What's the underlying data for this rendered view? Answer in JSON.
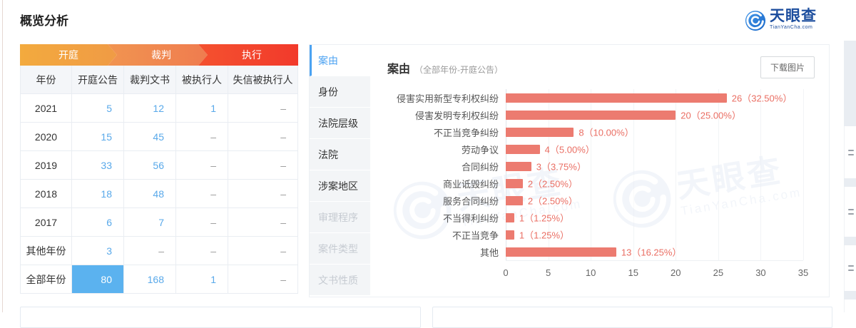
{
  "page": {
    "title": "概览分析"
  },
  "logo": {
    "brand": "天眼查",
    "domain": "TianYanCha.com"
  },
  "flow_tabs": [
    {
      "label": "开庭"
    },
    {
      "label": "裁判"
    },
    {
      "label": "执行"
    }
  ],
  "table": {
    "columns": [
      "年份",
      "开庭公告",
      "裁判文书",
      "被执行人",
      "失信被执行人"
    ],
    "rows": [
      {
        "label": "2021",
        "cells": [
          "5",
          "12",
          "1",
          "–"
        ],
        "links": [
          true,
          true,
          true,
          false
        ],
        "highlight": -1
      },
      {
        "label": "2020",
        "cells": [
          "15",
          "45",
          "–",
          "–"
        ],
        "links": [
          true,
          true,
          false,
          false
        ],
        "highlight": -1
      },
      {
        "label": "2019",
        "cells": [
          "33",
          "56",
          "–",
          "–"
        ],
        "links": [
          true,
          true,
          false,
          false
        ],
        "highlight": -1
      },
      {
        "label": "2018",
        "cells": [
          "18",
          "48",
          "–",
          "–"
        ],
        "links": [
          true,
          true,
          false,
          false
        ],
        "highlight": -1
      },
      {
        "label": "2017",
        "cells": [
          "6",
          "7",
          "–",
          "–"
        ],
        "links": [
          true,
          true,
          false,
          false
        ],
        "highlight": -1
      },
      {
        "label": "其他年份",
        "cells": [
          "3",
          "–",
          "–",
          "–"
        ],
        "links": [
          true,
          false,
          false,
          false
        ],
        "highlight": -1
      },
      {
        "label": "全部年份",
        "cells": [
          "80",
          "168",
          "1",
          "–"
        ],
        "links": [
          false,
          true,
          true,
          false
        ],
        "highlight": 0
      }
    ]
  },
  "side_tabs": [
    {
      "label": "案由",
      "state": "active"
    },
    {
      "label": "身份",
      "state": "normal"
    },
    {
      "label": "法院层级",
      "state": "normal"
    },
    {
      "label": "法院",
      "state": "normal"
    },
    {
      "label": "涉案地区",
      "state": "normal"
    },
    {
      "label": "审理程序",
      "state": "disabled"
    },
    {
      "label": "案件类型",
      "state": "disabled"
    },
    {
      "label": "文书性质",
      "state": "disabled"
    }
  ],
  "chart_header": {
    "title": "案由",
    "subtitle": "（全部年份-开庭公告）",
    "download_button": "下载图片"
  },
  "chart_data": {
    "type": "bar",
    "orientation": "horizontal",
    "title": "案由（全部年份-开庭公告）",
    "categories": [
      "侵害实用新型专利权纠纷",
      "侵害发明专利权纠纷",
      "不正当竞争纠纷",
      "劳动争议",
      "合同纠纷",
      "商业诋毁纠纷",
      "服务合同纠纷",
      "不当得利纠纷",
      "不正当竞争",
      "其他"
    ],
    "values": [
      26,
      20,
      8,
      4,
      3,
      2,
      2,
      1,
      1,
      13
    ],
    "percent_labels": [
      "32.50%",
      "25.00%",
      "10.00%",
      "5.00%",
      "3.75%",
      "2.50%",
      "2.50%",
      "1.25%",
      "1.25%",
      "16.25%"
    ],
    "value_label_format": "{value}（{percent}）",
    "xlim": [
      0,
      35
    ],
    "xticks": [
      0,
      5,
      10,
      15,
      20,
      25,
      30,
      35
    ],
    "bar_color": "#EC7B70",
    "grid": true,
    "legend": false
  },
  "watermark": {
    "brand": "天眼查",
    "domain": "TianYanCha.com"
  }
}
